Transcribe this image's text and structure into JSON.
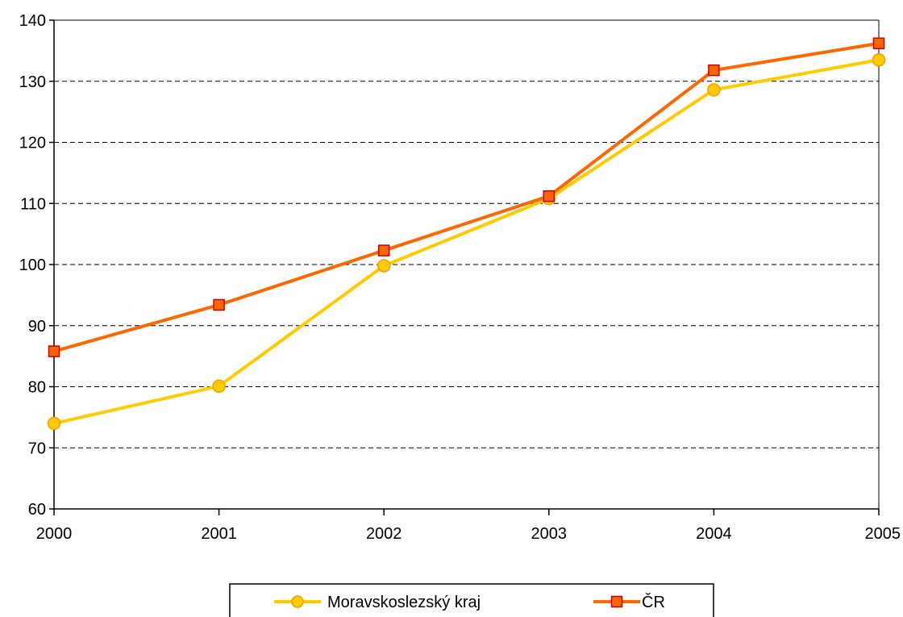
{
  "chart_data": {
    "type": "line",
    "title": "",
    "xlabel": "",
    "ylabel": "",
    "x": [
      "2000",
      "2001",
      "2002",
      "2003",
      "2004",
      "2005"
    ],
    "ylim": [
      60,
      140
    ],
    "yticks": [
      "60",
      "70",
      "80",
      "90",
      "100",
      "110",
      "120",
      "130",
      "140"
    ],
    "grid": "horizontal-dashed",
    "legend_position": "bottom",
    "series": [
      {
        "name": "Moravskoslezský kraj",
        "values": [
          74.0,
          80.1,
          99.8,
          110.8,
          128.6,
          133.5
        ],
        "color": "#FFCC00",
        "marker": "circle"
      },
      {
        "name": "ČR",
        "values": [
          85.8,
          93.4,
          102.3,
          111.2,
          131.8,
          136.2
        ],
        "color": "#FF6600",
        "marker": "square"
      }
    ]
  }
}
